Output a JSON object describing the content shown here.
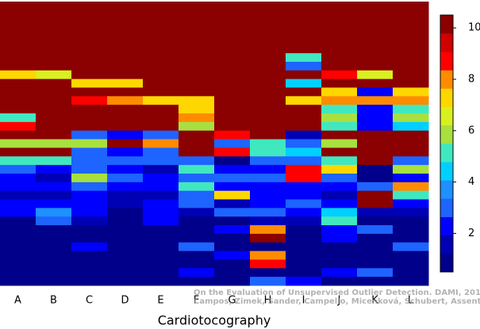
{
  "chart_data": {
    "type": "heatmap",
    "x_label": "Cardiotocography",
    "categories": [
      "A",
      "B",
      "C",
      "D",
      "E",
      "F",
      "G",
      "H",
      "I",
      "J",
      "K",
      "L"
    ],
    "z": [
      [
        10,
        10,
        10,
        10,
        10,
        10,
        10,
        10,
        10,
        10,
        10,
        10
      ],
      [
        10,
        10,
        10,
        10,
        10,
        10,
        10,
        10,
        10,
        10,
        10,
        10
      ],
      [
        10,
        10,
        10,
        10,
        10,
        10,
        10,
        10,
        10,
        10,
        10,
        10
      ],
      [
        10,
        10,
        10,
        10,
        10,
        10,
        10,
        10,
        10,
        10,
        10,
        10
      ],
      [
        10,
        10,
        10,
        10,
        10,
        10,
        10,
        10,
        10,
        10,
        10,
        10
      ],
      [
        10,
        10,
        10,
        10,
        10,
        10,
        10,
        10,
        10,
        10,
        10,
        10
      ],
      [
        10,
        10,
        10,
        10,
        10,
        10,
        10,
        10,
        5,
        10,
        10,
        10
      ],
      [
        10,
        10,
        10,
        10,
        10,
        10,
        10,
        10,
        3,
        10,
        10,
        10
      ],
      [
        7,
        6.5,
        10,
        10,
        10,
        10,
        10,
        10,
        10,
        9,
        6.5,
        10
      ],
      [
        10,
        10,
        7,
        7,
        10,
        10,
        10,
        10,
        4.3,
        10,
        10,
        10
      ],
      [
        10,
        10,
        10,
        10,
        10,
        10,
        10,
        10,
        10,
        7,
        2,
        7
      ],
      [
        10,
        10,
        9,
        8,
        7.3,
        7.3,
        10,
        10,
        7,
        8,
        8,
        8
      ],
      [
        10,
        10,
        10,
        10,
        10,
        7.3,
        10,
        10,
        10,
        5,
        2,
        5
      ],
      [
        5,
        10,
        10,
        10,
        10,
        8,
        10,
        10,
        10,
        6,
        2,
        6
      ],
      [
        9,
        10,
        10,
        10,
        10,
        6,
        10,
        10,
        10,
        5,
        2,
        4.3
      ],
      [
        10,
        10,
        3,
        2,
        3,
        10,
        9,
        10,
        1.5,
        10,
        10,
        10
      ],
      [
        6,
        6,
        6,
        10,
        8,
        10,
        3,
        5,
        3,
        6,
        10,
        10
      ],
      [
        10,
        10,
        3,
        2,
        3,
        10,
        9,
        5,
        4.3,
        10,
        10,
        10
      ],
      [
        5,
        5,
        3,
        3,
        3,
        3,
        1,
        3,
        3,
        5,
        10,
        3
      ],
      [
        3,
        2,
        3,
        2,
        1.5,
        5,
        2,
        2,
        9,
        7,
        1,
        6
      ],
      [
        2,
        1.5,
        6,
        3,
        2,
        3,
        3,
        3,
        9,
        3,
        1,
        2
      ],
      [
        2,
        2,
        3,
        2,
        2,
        5,
        2,
        2,
        2,
        2,
        3,
        8
      ],
      [
        1.5,
        1.5,
        2,
        1.5,
        1.5,
        3,
        7,
        2,
        2,
        1.5,
        10,
        5
      ],
      [
        2,
        2,
        2,
        1.5,
        2,
        3,
        1.5,
        2,
        3,
        2,
        10,
        2
      ],
      [
        2,
        4,
        2,
        1,
        2,
        1.5,
        3,
        3,
        2,
        4.3,
        1.5,
        1.5
      ],
      [
        1,
        3,
        1.5,
        1,
        2,
        1,
        1,
        1.5,
        1.5,
        5,
        1,
        1
      ],
      [
        1,
        1,
        1,
        1,
        1,
        1,
        2,
        8,
        1,
        2,
        3,
        1
      ],
      [
        1,
        1,
        1,
        1,
        1,
        1,
        1,
        10,
        1,
        2,
        1,
        1
      ],
      [
        1,
        1,
        2,
        1,
        1,
        3,
        1,
        1,
        1,
        1,
        1,
        3
      ],
      [
        1,
        1,
        1,
        1,
        1,
        1,
        2,
        8,
        1,
        1,
        1,
        1
      ],
      [
        1,
        1,
        1,
        1,
        1,
        1,
        1,
        9,
        1,
        1,
        1,
        1
      ],
      [
        1,
        1,
        1,
        1,
        1,
        2,
        1,
        1,
        1,
        2,
        3,
        1
      ],
      [
        1,
        1,
        1,
        1,
        1,
        1,
        1,
        3,
        2,
        1,
        1,
        1
      ]
    ],
    "colors": [
      "#00008b",
      "#0000b4",
      "#0000ff",
      "#1e64ff",
      "#1e90ff",
      "#00d0ff",
      "#40e8c0",
      "#a8e040",
      "#d8f020",
      "#ffd700",
      "#ff8c00",
      "#ff0000",
      "#d00000",
      "#8b0000"
    ],
    "zlim": [
      0.5,
      10.5
    ],
    "zticks": [
      2,
      4,
      6,
      8,
      10
    ],
    "annotations": [
      "On the Evaluation of Unsupervised Outlier Detection. DAMI, 2015.",
      "Campos, Zimek, Sander, Campello, Micenková, Schubert, Assent, Houle"
    ]
  }
}
